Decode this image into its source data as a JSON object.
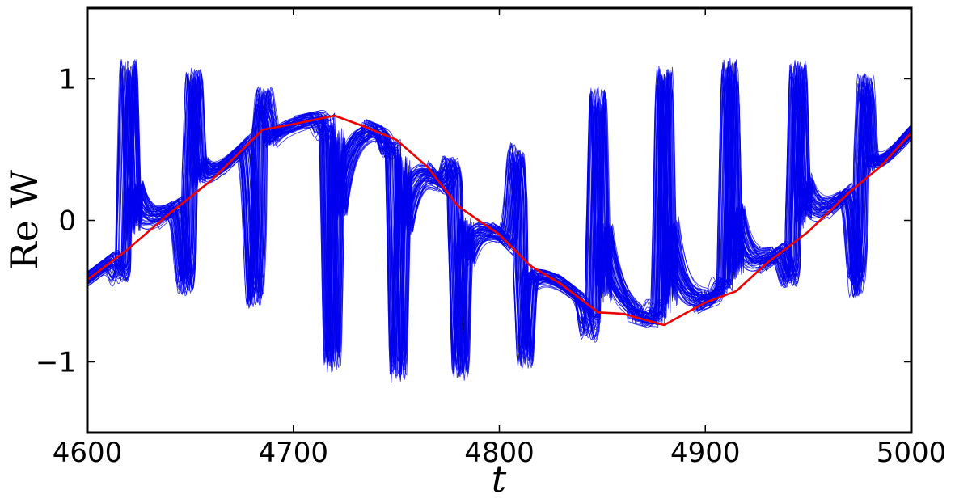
{
  "chart_data": {
    "type": "line",
    "xlabel": "t",
    "ylabel": "Re W",
    "xlim": [
      4600,
      5000
    ],
    "ylim": [
      -1.5,
      1.5
    ],
    "xticks": [
      4600,
      4700,
      4800,
      4900,
      5000
    ],
    "yticks": [
      -1,
      0,
      1
    ],
    "xtick_labels": [
      "4600",
      "4700",
      "4800",
      "4900",
      "5000"
    ],
    "ytick_labels": [
      "−1",
      "0",
      "1"
    ],
    "grid": false,
    "legend": "none",
    "ensemble": {
      "color": "#0000ee",
      "member_count": 60,
      "spike_times": [
        4620,
        4652,
        4686,
        4719,
        4751,
        4781,
        4813,
        4848,
        4880,
        4912,
        4945,
        4978
      ],
      "spike_peaks": [
        1.15,
        1.08,
        0.95,
        -1.08,
        -1.15,
        -1.14,
        -1.06,
        0.95,
        1.1,
        1.15,
        1.14,
        1.05
      ],
      "spike_troughs": [
        -0.5,
        -0.7,
        -0.92,
        0.75,
        0.55,
        0.52,
        0.73,
        -0.92,
        -0.75,
        -0.52,
        -0.55,
        -0.75
      ]
    },
    "series": [
      {
        "color": "#ee0000",
        "x": [
          4600,
          4620,
          4640,
          4660,
          4685,
          4700,
          4720,
          4735,
          4750,
          4765,
          4780,
          4800,
          4815,
          4830,
          4848,
          4860,
          4880,
          4900,
          4915,
          4930,
          4950,
          4970,
          4985,
          5000
        ],
        "y": [
          -0.42,
          -0.2,
          0.05,
          0.28,
          0.64,
          0.68,
          0.74,
          0.66,
          0.57,
          0.38,
          0.1,
          -0.1,
          -0.32,
          -0.45,
          -0.65,
          -0.66,
          -0.74,
          -0.58,
          -0.5,
          -0.3,
          -0.08,
          0.2,
          0.38,
          0.62
        ]
      }
    ]
  }
}
